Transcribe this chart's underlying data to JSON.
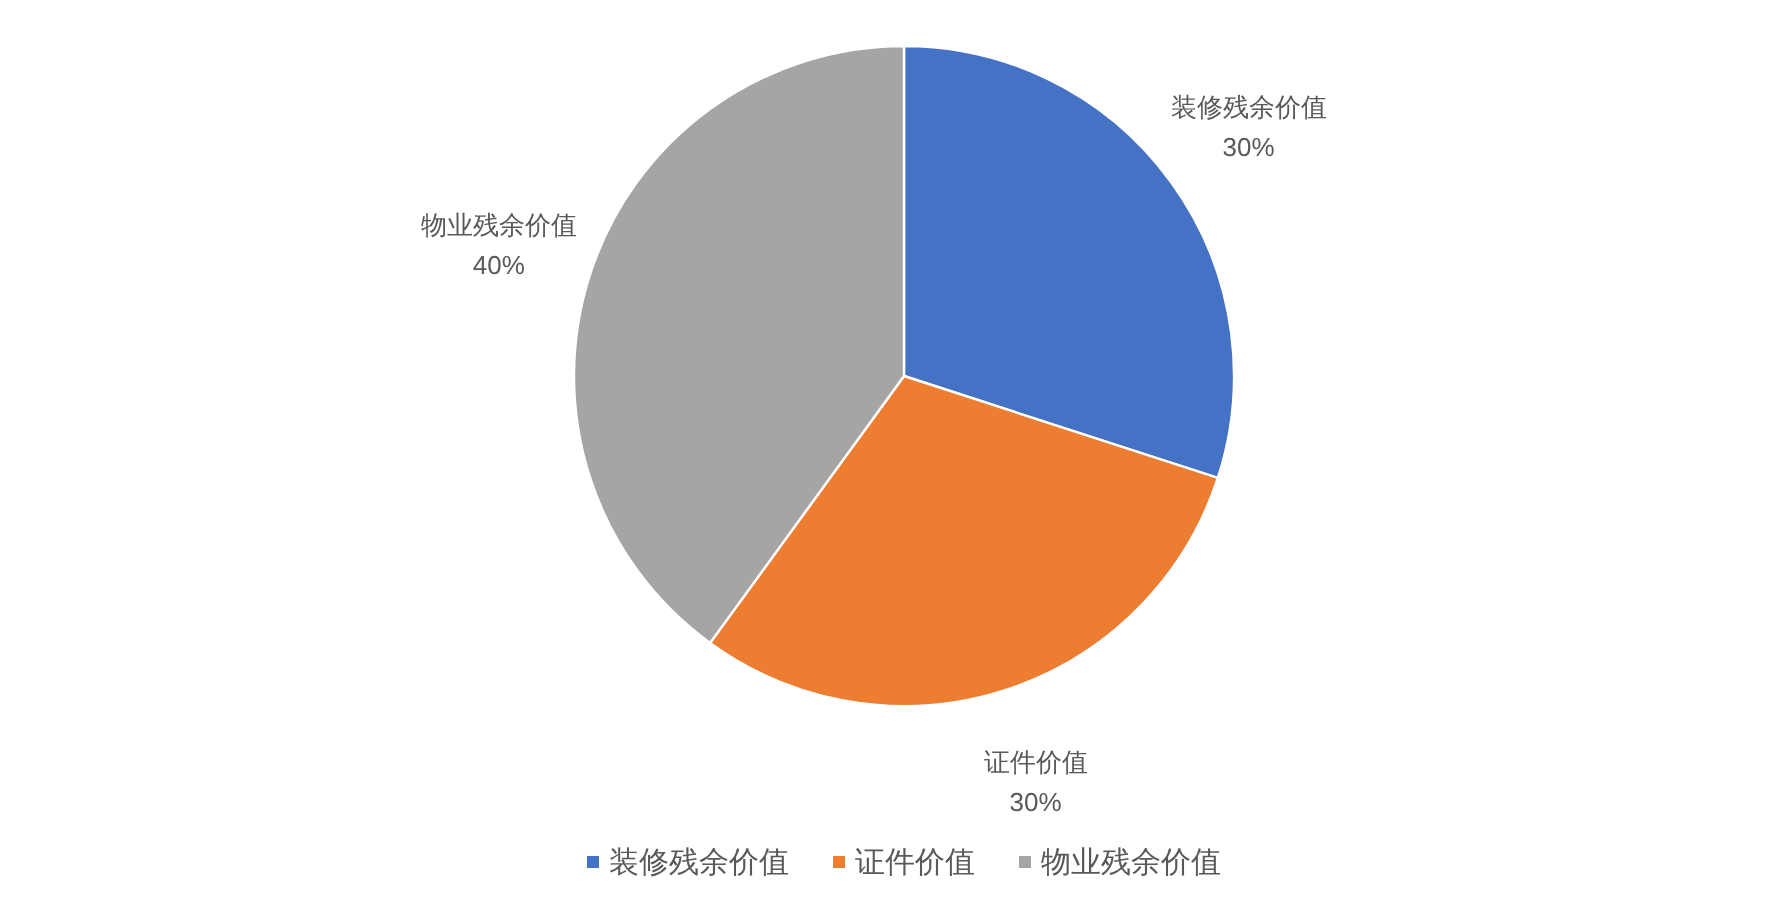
{
  "chart_data": {
    "type": "pie",
    "categories": [
      "装修残余价值",
      "证件价值",
      "物业残余价值"
    ],
    "values": [
      30,
      30,
      40
    ],
    "colors": [
      "#4472c4",
      "#ed7d31",
      "#a5a5a5"
    ],
    "value_labels": [
      "30%",
      "30%",
      "40%"
    ],
    "legend": "bottom"
  }
}
